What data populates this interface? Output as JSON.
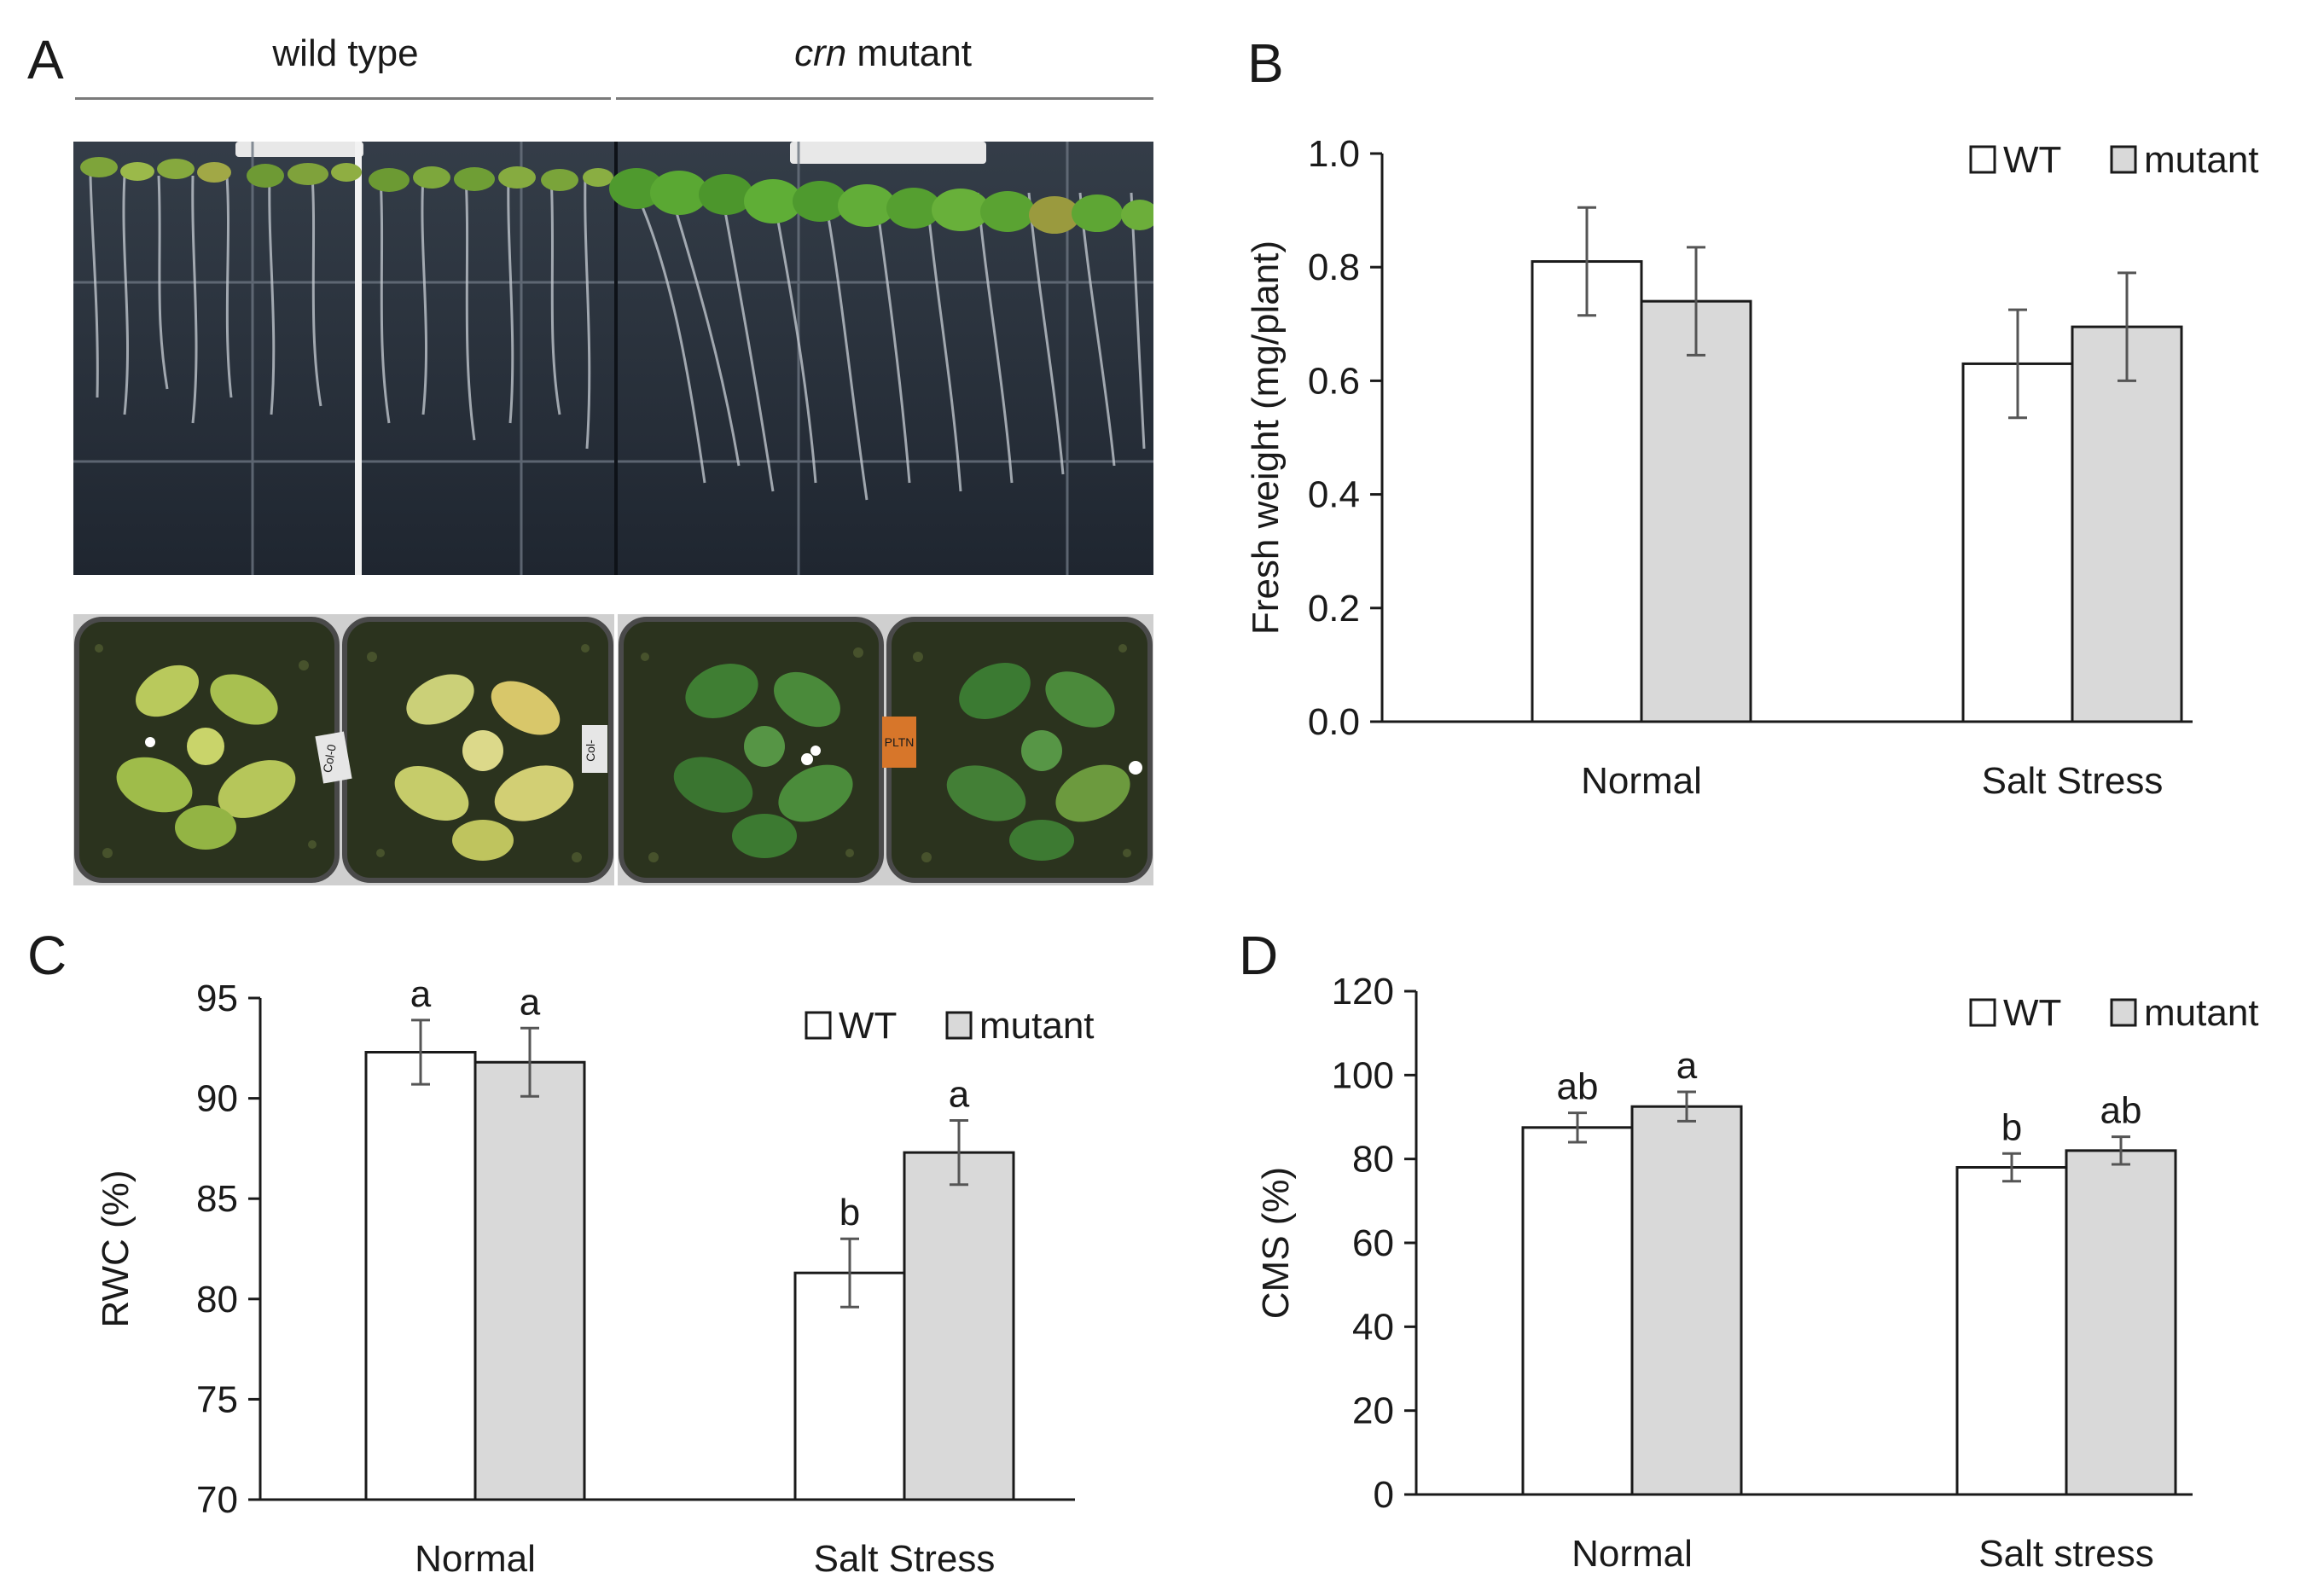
{
  "panelA": {
    "letter": "A",
    "wild_type_label": "wild type",
    "mutant_label_italic": "crn",
    "mutant_label_rest": " mutant",
    "tag_labels": [
      "Col-0",
      "Col-",
      "PLTN"
    ]
  },
  "colors": {
    "wt_fill": "#ffffff",
    "mutant_fill": "#d9d9d9",
    "bar_stroke": "#1a1a1a",
    "error_bar": "#555555",
    "plate_bg": "#27303b",
    "soil": "#2b331e",
    "leaf_light": "#b8c95a",
    "leaf_dark": "#3e7a2c"
  },
  "chart_data": [
    {
      "panel": "B",
      "type": "bar",
      "categories": [
        "Normal",
        "Salt Stress"
      ],
      "ylabel": "Fresh weight (mg/plant)",
      "ylim": [
        0,
        1.0
      ],
      "yticks": [
        "0.0",
        "0.2",
        "0.4",
        "0.6",
        "0.8",
        "1.0"
      ],
      "ytick_values": [
        0,
        0.2,
        0.4,
        0.6,
        0.8,
        1.0
      ],
      "legend": "top-right",
      "series": [
        {
          "name": "WT",
          "values": [
            0.81,
            0.63
          ],
          "errors": [
            0.095,
            0.095
          ],
          "letters": []
        },
        {
          "name": "mutant",
          "values": [
            0.74,
            0.695
          ],
          "errors": [
            0.095,
            0.095
          ],
          "letters": []
        }
      ]
    },
    {
      "panel": "C",
      "type": "bar",
      "categories": [
        "Normal",
        "Salt Stress"
      ],
      "ylabel": "RWC (%)",
      "ylim": [
        70,
        95
      ],
      "yticks": [
        "70",
        "75",
        "80",
        "85",
        "90",
        "95"
      ],
      "ytick_values": [
        70,
        75,
        80,
        85,
        90,
        95
      ],
      "legend": "top-right",
      "series": [
        {
          "name": "WT",
          "values": [
            92.3,
            81.3
          ],
          "errors": [
            1.6,
            1.7
          ],
          "letters": [
            "a",
            "b"
          ]
        },
        {
          "name": "mutant",
          "values": [
            91.8,
            87.3
          ],
          "errors": [
            1.7,
            1.6
          ],
          "letters": [
            "a",
            "a"
          ]
        }
      ]
    },
    {
      "panel": "D",
      "type": "bar",
      "categories": [
        "Normal",
        "Salt stress"
      ],
      "ylabel": "CMS (%)",
      "ylim": [
        0,
        120
      ],
      "yticks": [
        "0",
        "20",
        "40",
        "60",
        "80",
        "100",
        "120"
      ],
      "ytick_values": [
        0,
        20,
        40,
        60,
        80,
        100,
        120
      ],
      "legend": "top-right",
      "series": [
        {
          "name": "WT",
          "values": [
            87.5,
            78
          ],
          "errors": [
            3.5,
            3.3
          ],
          "letters": [
            "ab",
            "b"
          ]
        },
        {
          "name": "mutant",
          "values": [
            92.5,
            82
          ],
          "errors": [
            3.5,
            3.3
          ],
          "letters": [
            "a",
            "ab"
          ]
        }
      ]
    }
  ]
}
